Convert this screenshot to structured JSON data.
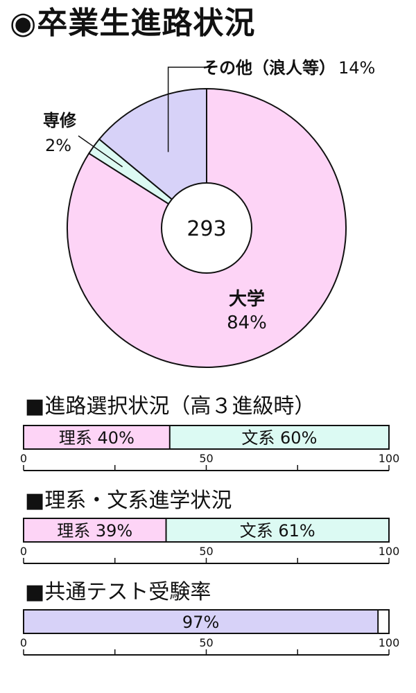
{
  "title": "◉卒業生進路状況",
  "chart_data": [
    {
      "type": "pie",
      "center_label": "293",
      "slices": [
        {
          "label": "大学",
          "value": 84,
          "value_label": "84%",
          "color": "#fdd4f6"
        },
        {
          "label": "専修",
          "value": 2,
          "value_label": "2%",
          "color": "#dcfaf3"
        },
        {
          "label": "その他（浪人等）",
          "value": 14,
          "value_label": "14%",
          "color": "#d7d2f8"
        }
      ]
    },
    {
      "type": "bar",
      "title": "■進路選択状況（高３進級時）",
      "xlim": [
        0,
        100
      ],
      "ticks": [
        "0",
        "50",
        "100"
      ],
      "segments": [
        {
          "label": "理系 40%",
          "value": 40,
          "color": "#fdd4f6"
        },
        {
          "label": "文系 60%",
          "value": 60,
          "color": "#dcfaf3"
        }
      ]
    },
    {
      "type": "bar",
      "title": "■理系・文系進学状況",
      "xlim": [
        0,
        100
      ],
      "ticks": [
        "0",
        "50",
        "100"
      ],
      "segments": [
        {
          "label": "理系 39%",
          "value": 39,
          "color": "#fdd4f6"
        },
        {
          "label": "文系 61%",
          "value": 61,
          "color": "#dcfaf3"
        }
      ]
    },
    {
      "type": "bar",
      "title": "■共通テスト受験率",
      "xlim": [
        0,
        100
      ],
      "ticks": [
        "0",
        "50",
        "100"
      ],
      "segments": [
        {
          "label": "97%",
          "value": 97,
          "color": "#d7d2f8"
        },
        {
          "label": "",
          "value": 3,
          "color": "#ffffff"
        }
      ]
    }
  ]
}
